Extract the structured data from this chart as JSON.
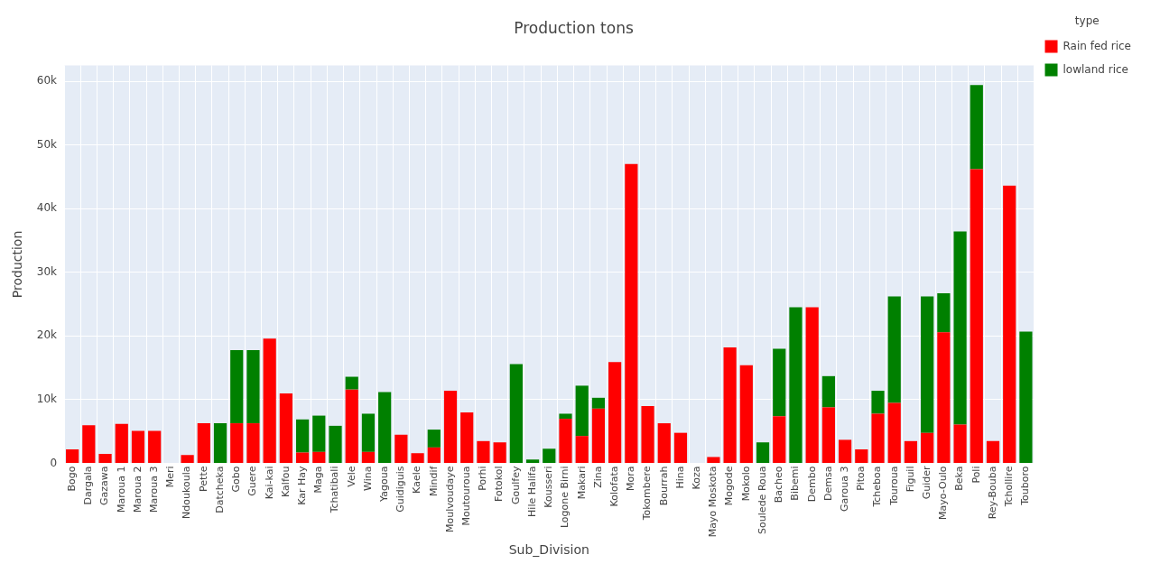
{
  "chart_data": {
    "type": "bar",
    "title": "Production tons",
    "xlabel": "Sub_Division",
    "ylabel": "Production",
    "legend_title": "type",
    "stacked": true,
    "grid": true,
    "legend": "top right",
    "categories": [
      "Bogo",
      "Dargala",
      "Gazawa",
      "Maroua 1",
      "Maroua 2",
      "Maroua 3",
      "Meri",
      "Ndoukoula",
      "Pette",
      "Datcheka",
      "Gobo",
      "Guere",
      "Kai-kai",
      "Kalfou",
      "Kar Hay",
      "Maga",
      "Tchatibali",
      "Vele",
      "Wina",
      "Yagoua",
      "Guidiguis",
      "Kaele",
      "Mindif",
      "Moulvoudaye",
      "Moutouroua",
      "Porhi",
      "Fotokol",
      "Goulfey",
      "Hile Halifa",
      "Kousseri",
      "Logone Birni",
      "Makari",
      "Zina",
      "Kolofata",
      "Mora",
      "Tokombere",
      "Bourrah",
      "Hina",
      "Koza",
      "Mayo Moskota",
      "Mogode",
      "Mokolo",
      "Soulede Roua",
      "Bacheo",
      "Bibemi",
      "Dembo",
      "Demsa",
      "Garoua 3",
      "Pitoa",
      "Tcheboa",
      "Touroua",
      "Figuil",
      "Guider",
      "Mayo-Oulo",
      "Beka",
      "Poli",
      "Rey-Bouba",
      "Tchollire",
      "Touboro"
    ],
    "series": [
      {
        "name": "Rain fed rice",
        "color": "#ff0000",
        "values": [
          2200,
          6000,
          1500,
          6200,
          5100,
          5100,
          null,
          1300,
          6300,
          0,
          6300,
          6300,
          19600,
          11000,
          1700,
          1800,
          0,
          11600,
          1800,
          0,
          4500,
          1600,
          2500,
          11400,
          8000,
          3500,
          3300,
          0,
          0,
          0,
          7000,
          4300,
          8600,
          15900,
          47000,
          9000,
          6300,
          4800,
          null,
          1000,
          18200,
          15400,
          0,
          7400,
          0,
          24500,
          8800,
          3700,
          2200,
          7800,
          9500,
          3500,
          4800,
          20600,
          6100,
          46200,
          3500,
          43600,
          0
        ]
      },
      {
        "name": "lowland rice",
        "color": "#008000",
        "values": [
          0,
          0,
          0,
          0,
          0,
          0,
          0,
          0,
          0,
          6300,
          11500,
          11500,
          0,
          0,
          5200,
          5700,
          5900,
          2000,
          6000,
          11200,
          0,
          0,
          2800,
          0,
          0,
          0,
          0,
          15600,
          600,
          2300,
          800,
          7900,
          1700,
          0,
          0,
          0,
          0,
          0,
          0,
          0,
          0,
          0,
          3300,
          10600,
          24500,
          0,
          4900,
          0,
          0,
          3600,
          16700,
          0,
          21400,
          6100,
          30300,
          13200,
          0,
          0,
          20700
        ]
      }
    ],
    "ylim": [
      0,
      62500
    ],
    "yticks": [
      0,
      {
        "value": 10000,
        "label": "10k"
      },
      {
        "value": 20000,
        "label": "20k"
      },
      {
        "value": 30000,
        "label": "30k"
      },
      {
        "value": 40000,
        "label": "40k"
      },
      {
        "value": 50000,
        "label": "50k"
      },
      {
        "value": 60000,
        "label": "60k"
      }
    ]
  }
}
